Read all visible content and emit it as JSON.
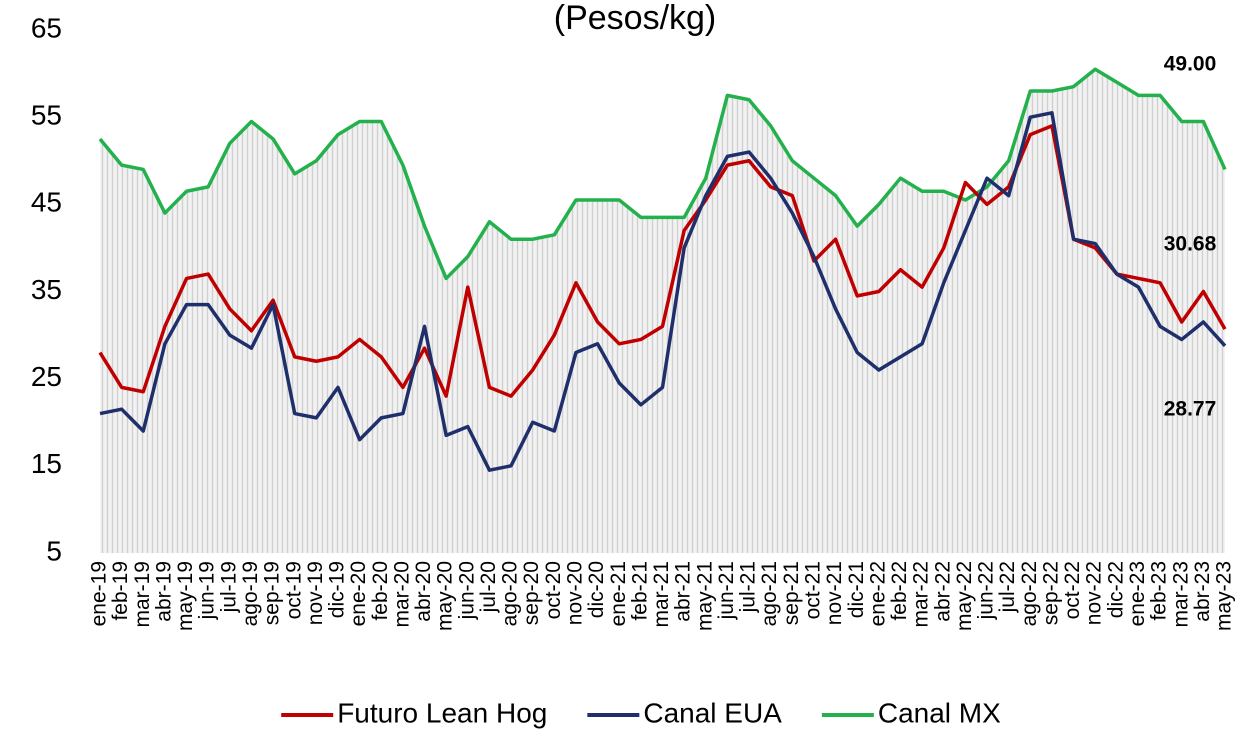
{
  "chart_data": {
    "type": "line",
    "title": "(Pesos/kg)",
    "categories": [
      "ene-19",
      "feb-19",
      "mar-19",
      "abr-19",
      "may-19",
      "jun-19",
      "jul-19",
      "ago-19",
      "sep-19",
      "oct-19",
      "nov-19",
      "dic-19",
      "ene-20",
      "feb-20",
      "mar-20",
      "abr-20",
      "may-20",
      "jun-20",
      "jul-20",
      "ago-20",
      "sep-20",
      "oct-20",
      "nov-20",
      "dic-20",
      "ene-21",
      "feb-21",
      "mar-21",
      "abr-21",
      "may-21",
      "jun-21",
      "jul-21",
      "ago-21",
      "sep-21",
      "oct-21",
      "nov-21",
      "dic-21",
      "ene-22",
      "feb-22",
      "mar-22",
      "abr-22",
      "may-22",
      "jun-22",
      "jul-22",
      "ago-22",
      "sep-22",
      "oct-22",
      "nov-22",
      "dic-22",
      "ene-23",
      "feb-23",
      "mar-23",
      "abr-23",
      "may-23"
    ],
    "series": [
      {
        "name": "Futuro Lean Hog",
        "color": "#c00000",
        "values": [
          28,
          24,
          23.5,
          31,
          36.5,
          37,
          33,
          30.5,
          34,
          27.5,
          27,
          27.5,
          29.5,
          27.5,
          24,
          28.5,
          23,
          35.5,
          24,
          23,
          26,
          30,
          36,
          31.5,
          29,
          29.5,
          31,
          42,
          45.5,
          49.5,
          50,
          47,
          46,
          38.5,
          41,
          34.5,
          35,
          37.5,
          35.5,
          40,
          47.5,
          45,
          47,
          53,
          54,
          41,
          40,
          37,
          36.5,
          36,
          31.5,
          35,
          30.68
        ],
        "value_labels": [
          null,
          null,
          null,
          null,
          null,
          null,
          null,
          null,
          null,
          null,
          null,
          null,
          null,
          null,
          null,
          null,
          null,
          null,
          null,
          null,
          null,
          null,
          null,
          null,
          null,
          null,
          null,
          null,
          null,
          null,
          null,
          null,
          null,
          null,
          null,
          null,
          null,
          null,
          null,
          null,
          null,
          null,
          null,
          null,
          null,
          null,
          null,
          null,
          null,
          null,
          null,
          null,
          "30.68"
        ]
      },
      {
        "name": "Canal EUA",
        "color": "#1f2f6b",
        "values": [
          21,
          21.5,
          19,
          29,
          33.5,
          33.5,
          30,
          28.5,
          33.5,
          21,
          20.5,
          24,
          18,
          20.5,
          21,
          31,
          18.5,
          19.5,
          14.5,
          15,
          20,
          19,
          28,
          29,
          24.5,
          22,
          24,
          40,
          46,
          50.5,
          51,
          48,
          44,
          39,
          33,
          28,
          26,
          27.5,
          29,
          36,
          42,
          48,
          46,
          55,
          55.5,
          41,
          40.5,
          37,
          35.5,
          31,
          29.5,
          31.5,
          28.77
        ],
        "value_labels": [
          null,
          null,
          null,
          null,
          null,
          null,
          null,
          null,
          null,
          null,
          null,
          null,
          null,
          null,
          null,
          null,
          null,
          null,
          null,
          null,
          null,
          null,
          null,
          null,
          null,
          null,
          null,
          null,
          null,
          null,
          null,
          null,
          null,
          null,
          null,
          null,
          null,
          null,
          null,
          null,
          null,
          null,
          null,
          null,
          null,
          null,
          null,
          null,
          null,
          null,
          null,
          null,
          "28.77"
        ]
      },
      {
        "name": "Canal MX",
        "color": "#22b14c",
        "values": [
          52.5,
          49.5,
          49,
          44,
          46.5,
          47,
          52,
          54.5,
          52.5,
          48.5,
          50,
          53,
          54.5,
          54.5,
          49.5,
          42.5,
          36.5,
          39,
          43,
          41,
          41,
          41.5,
          45.5,
          45.5,
          45.5,
          43.5,
          43.5,
          43.5,
          48,
          57.5,
          57,
          54,
          50,
          48,
          46,
          42.5,
          45,
          48,
          46.5,
          46.5,
          45.5,
          47,
          50,
          58,
          58,
          58.5,
          60.5,
          59,
          57.5,
          57.5,
          54.5,
          54.5,
          49
        ],
        "value_labels": [
          null,
          null,
          null,
          null,
          null,
          null,
          null,
          null,
          null,
          null,
          null,
          null,
          null,
          null,
          null,
          null,
          null,
          null,
          null,
          null,
          null,
          null,
          null,
          null,
          null,
          null,
          null,
          null,
          null,
          null,
          null,
          null,
          null,
          null,
          null,
          null,
          null,
          null,
          null,
          null,
          null,
          null,
          null,
          null,
          null,
          null,
          null,
          null,
          null,
          null,
          null,
          null,
          "49.00"
        ]
      }
    ],
    "ylim": [
      5,
      65
    ],
    "yticks": [
      5,
      15,
      25,
      35,
      45,
      55,
      65
    ],
    "grid": false,
    "legend": "bottom"
  }
}
